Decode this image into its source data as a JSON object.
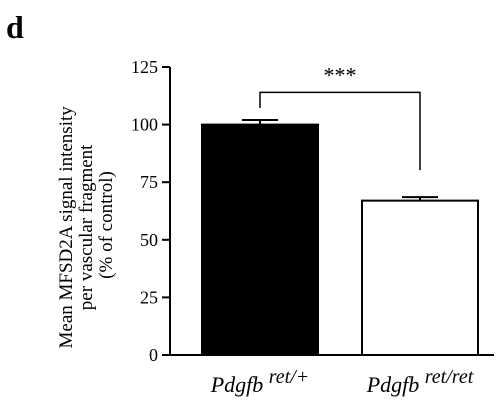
{
  "panel_label": "d",
  "chart_data": {
    "type": "bar",
    "ylabel_lines": [
      "Mean MFSD2A signal intensity",
      "per vascular fragment",
      "(% of control)"
    ],
    "categories": [
      {
        "base": "Pdgfb",
        "sup": "ret/+"
      },
      {
        "base": "Pdgfb",
        "sup": "ret/ret"
      }
    ],
    "values": [
      100,
      67
    ],
    "errors": [
      2,
      1.5
    ],
    "bar_fills": [
      "#000000",
      "#ffffff"
    ],
    "ylim": [
      0,
      125
    ],
    "yticks": [
      0,
      25,
      50,
      75,
      100,
      125
    ],
    "significance": {
      "label": "***",
      "between": [
        0,
        1
      ],
      "level": 114
    },
    "grid": false,
    "legend": "none"
  }
}
